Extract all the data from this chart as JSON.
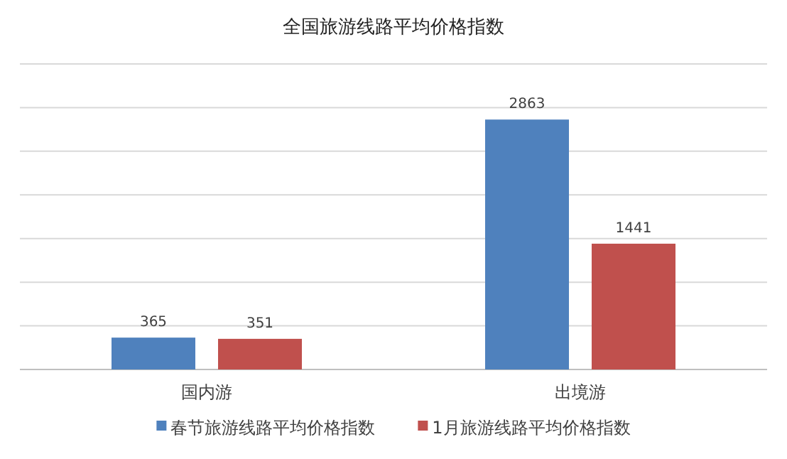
{
  "chart_data": {
    "type": "bar",
    "title": "全国旅游线路平均价格指数",
    "categories": [
      "国内游",
      "出境游"
    ],
    "series": [
      {
        "name": "春节旅游线路平均价格指数",
        "color": "#4f81bd",
        "values": [
          365,
          2863
        ]
      },
      {
        "name": "1月旅游线路平均价格指数",
        "color": "#c0504d",
        "values": [
          351,
          1441
        ]
      }
    ],
    "ylim": [
      0,
      3500
    ],
    "yticks": [
      {
        "value": 0,
        "label": null
      },
      {
        "value": 500,
        "label": null
      },
      {
        "value": 1000,
        "label": null
      },
      {
        "value": 1500,
        "label": null
      },
      {
        "value": 2000,
        "label": null
      },
      {
        "value": 2500,
        "label": null
      },
      {
        "value": 3000,
        "label": null
      },
      {
        "value": 3500,
        "label": null
      }
    ],
    "grid": "y",
    "legend": "bottom",
    "data_labels": true,
    "tick_labels": "x"
  }
}
